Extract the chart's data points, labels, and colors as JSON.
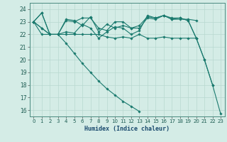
{
  "xlabel": "Humidex (Indice chaleur)",
  "bg_color": "#d4ece6",
  "grid_color": "#b8d8d0",
  "line_color": "#1a7a6e",
  "xlim": [
    -0.5,
    23.5
  ],
  "ylim": [
    15.5,
    24.5
  ],
  "yticks": [
    16,
    17,
    18,
    19,
    20,
    21,
    22,
    23,
    24
  ],
  "xticks": [
    0,
    1,
    2,
    3,
    4,
    5,
    6,
    7,
    8,
    9,
    10,
    11,
    12,
    13,
    14,
    15,
    16,
    17,
    18,
    19,
    20,
    21,
    22,
    23
  ],
  "series": [
    [
      23.0,
      23.7,
      22.0,
      22.0,
      23.1,
      23.0,
      23.3,
      23.3,
      22.5,
      22.3,
      23.0,
      23.0,
      22.5,
      22.5,
      23.3,
      23.2,
      23.5,
      23.2,
      23.2,
      23.2,
      23.1,
      null,
      null,
      null
    ],
    [
      23.0,
      23.7,
      22.0,
      22.0,
      23.2,
      23.1,
      22.7,
      23.4,
      22.2,
      22.8,
      22.5,
      22.7,
      22.5,
      22.7,
      23.4,
      23.3,
      23.5,
      23.2,
      23.3,
      23.1,
      21.7,
      20.0,
      18.0,
      null
    ],
    [
      23.0,
      22.5,
      22.0,
      22.0,
      22.0,
      22.0,
      22.0,
      22.0,
      22.0,
      21.8,
      21.7,
      21.8,
      21.7,
      22.0,
      21.7,
      21.7,
      21.8,
      21.7,
      21.7,
      21.7,
      21.7,
      null,
      null,
      null
    ],
    [
      23.0,
      22.5,
      22.0,
      22.0,
      22.2,
      22.1,
      22.8,
      22.5,
      21.7,
      22.2,
      22.6,
      22.5,
      22.0,
      22.3,
      23.5,
      23.3,
      23.5,
      23.3,
      23.3,
      23.1,
      21.7,
      20.0,
      18.0,
      15.7
    ],
    [
      23.0,
      22.0,
      22.0,
      22.0,
      21.3,
      20.5,
      19.7,
      19.0,
      18.3,
      17.7,
      17.2,
      16.7,
      16.3,
      15.9,
      null,
      null,
      null,
      null,
      null,
      null,
      null,
      null,
      null,
      null
    ]
  ]
}
